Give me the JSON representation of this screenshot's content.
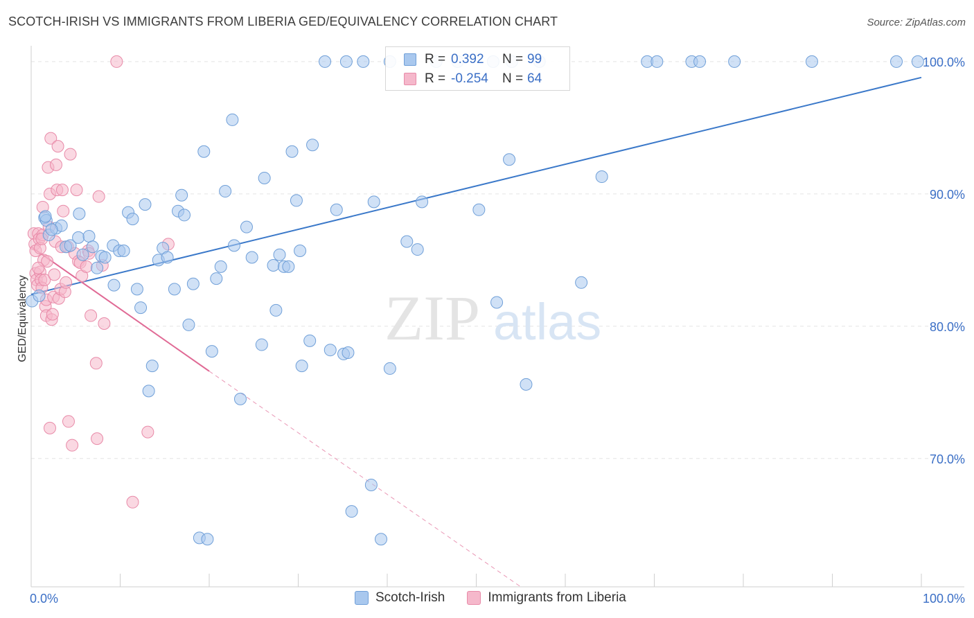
{
  "title": "SCOTCH-IRISH VS IMMIGRANTS FROM LIBERIA GED/EQUIVALENCY CORRELATION CHART",
  "source": "Source: ZipAtlas.com",
  "watermark": {
    "zip": "ZIP",
    "atlas": "atlas"
  },
  "legend": {
    "row1": {
      "r_label": "R =",
      "r_value": "0.392",
      "n_label": "N =",
      "n_value": "99"
    },
    "row2": {
      "r_label": "R =",
      "r_value": "-0.254",
      "n_label": "N =",
      "n_value": "64"
    }
  },
  "bottom_legend": {
    "series1": "Scotch-Irish",
    "series2": "Immigrants from Liberia"
  },
  "colors": {
    "blue_fill": "#a9c8ee",
    "blue_stroke": "#6f9fd8",
    "blue_line": "#3a78c9",
    "pink_fill": "#f5b8cb",
    "pink_stroke": "#e88aa8",
    "pink_line": "#e06a95",
    "axis_text": "#3b6fc6",
    "grid": "#e3e3e3"
  },
  "chart_data": {
    "type": "scatter",
    "title": "SCOTCH-IRISH VS IMMIGRANTS FROM LIBERIA GED/EQUIVALENCY CORRELATION CHART",
    "xlabel": "",
    "ylabel": "GED/Equivalency",
    "xlim": [
      0,
      100
    ],
    "ylim": [
      60.3,
      101.2
    ],
    "x_tick_labels": [
      "0.0%",
      "100.0%"
    ],
    "y_ticks": [
      70,
      80,
      90,
      100
    ],
    "y_tick_labels": [
      "70.0%",
      "80.0%",
      "90.0%",
      "100.0%"
    ],
    "grid": true,
    "series": [
      {
        "name": "Scotch-Irish",
        "r": 0.392,
        "n": 99,
        "trend": {
          "x": [
            0,
            100
          ],
          "y": [
            82.4,
            98.8
          ],
          "dashed_from": null
        },
        "points": [
          [
            0.1,
            81.9
          ],
          [
            1.5,
            88.2
          ],
          [
            1.7,
            88.0
          ],
          [
            2.0,
            86.9
          ],
          [
            2.8,
            87.4
          ],
          [
            3.4,
            87.6
          ],
          [
            3.9,
            86.0
          ],
          [
            4.4,
            86.1
          ],
          [
            5.3,
            86.7
          ],
          [
            5.4,
            88.5
          ],
          [
            5.8,
            85.4
          ],
          [
            6.5,
            86.8
          ],
          [
            6.9,
            86.0
          ],
          [
            7.4,
            84.4
          ],
          [
            7.9,
            85.3
          ],
          [
            8.3,
            85.2
          ],
          [
            9.2,
            86.1
          ],
          [
            9.3,
            83.1
          ],
          [
            9.9,
            85.7
          ],
          [
            10.4,
            85.7
          ],
          [
            10.9,
            88.6
          ],
          [
            11.4,
            88.1
          ],
          [
            11.9,
            82.8
          ],
          [
            12.3,
            81.4
          ],
          [
            12.8,
            89.2
          ],
          [
            13.2,
            75.1
          ],
          [
            13.6,
            77.0
          ],
          [
            14.3,
            85.0
          ],
          [
            14.8,
            85.9
          ],
          [
            15.3,
            85.2
          ],
          [
            16.1,
            82.8
          ],
          [
            16.5,
            88.7
          ],
          [
            16.9,
            89.9
          ],
          [
            17.2,
            88.4
          ],
          [
            17.7,
            80.1
          ],
          [
            18.2,
            83.2
          ],
          [
            18.9,
            64.0
          ],
          [
            19.4,
            93.2
          ],
          [
            19.8,
            63.9
          ],
          [
            20.3,
            78.1
          ],
          [
            20.8,
            83.6
          ],
          [
            21.3,
            84.5
          ],
          [
            21.8,
            90.2
          ],
          [
            22.6,
            95.6
          ],
          [
            22.8,
            86.1
          ],
          [
            23.5,
            74.5
          ],
          [
            24.2,
            87.5
          ],
          [
            24.8,
            85.2
          ],
          [
            25.9,
            78.6
          ],
          [
            26.2,
            91.2
          ],
          [
            27.2,
            84.6
          ],
          [
            27.5,
            81.2
          ],
          [
            27.9,
            85.4
          ],
          [
            28.4,
            84.5
          ],
          [
            28.9,
            84.5
          ],
          [
            29.3,
            93.2
          ],
          [
            29.8,
            89.5
          ],
          [
            30.2,
            85.7
          ],
          [
            30.4,
            77.0
          ],
          [
            31.3,
            78.9
          ],
          [
            31.6,
            93.7
          ],
          [
            33.0,
            100.0
          ],
          [
            35.4,
            100.0
          ],
          [
            33.6,
            78.2
          ],
          [
            34.3,
            88.8
          ],
          [
            35.1,
            77.9
          ],
          [
            35.6,
            78.0
          ],
          [
            36.0,
            66.0
          ],
          [
            37.3,
            100.0
          ],
          [
            38.2,
            68.0
          ],
          [
            38.5,
            89.4
          ],
          [
            39.3,
            63.9
          ],
          [
            40.3,
            76.8
          ],
          [
            40.3,
            100.0
          ],
          [
            42.2,
            86.4
          ],
          [
            43.4,
            85.8
          ],
          [
            43.9,
            89.4
          ],
          [
            45.5,
            100.0
          ],
          [
            47.9,
            100.0
          ],
          [
            50.3,
            88.8
          ],
          [
            51.9,
            100.0
          ],
          [
            52.3,
            81.8
          ],
          [
            53.7,
            92.6
          ],
          [
            54.0,
            100.0
          ],
          [
            55.6,
            75.6
          ],
          [
            57.1,
            100.0
          ],
          [
            61.8,
            83.3
          ],
          [
            64.1,
            91.3
          ],
          [
            69.2,
            100.0
          ],
          [
            70.3,
            100.0
          ],
          [
            74.2,
            100.0
          ],
          [
            75.1,
            100.0
          ],
          [
            79.0,
            100.0
          ],
          [
            87.7,
            100.0
          ],
          [
            97.2,
            100.0
          ],
          [
            99.6,
            100.0
          ],
          [
            0.9,
            82.3
          ],
          [
            1.6,
            88.3
          ],
          [
            2.3,
            87.3
          ]
        ]
      },
      {
        "name": "Immigrants from Liberia",
        "r": -0.254,
        "n": 64,
        "trend": {
          "x": [
            0,
            20.0,
            55.0
          ],
          "y": [
            86.0,
            76.6,
            60.3
          ],
          "dashed_from": 20.0
        },
        "points": [
          [
            0.3,
            87.0
          ],
          [
            0.4,
            86.2
          ],
          [
            0.5,
            85.7
          ],
          [
            0.5,
            84.0
          ],
          [
            0.6,
            83.5
          ],
          [
            0.7,
            83.1
          ],
          [
            0.8,
            87.0
          ],
          [
            0.9,
            86.6
          ],
          [
            1.0,
            85.9
          ],
          [
            1.0,
            84.1
          ],
          [
            1.1,
            83.5
          ],
          [
            1.2,
            82.9
          ],
          [
            1.3,
            89.0
          ],
          [
            1.3,
            86.9
          ],
          [
            1.4,
            85.0
          ],
          [
            1.5,
            83.5
          ],
          [
            1.6,
            81.5
          ],
          [
            1.7,
            80.8
          ],
          [
            1.7,
            82.0
          ],
          [
            1.8,
            84.9
          ],
          [
            1.9,
            92.0
          ],
          [
            2.0,
            87.5
          ],
          [
            2.1,
            90.0
          ],
          [
            2.2,
            94.2
          ],
          [
            2.3,
            80.5
          ],
          [
            2.4,
            80.9
          ],
          [
            2.5,
            82.2
          ],
          [
            2.6,
            83.9
          ],
          [
            2.7,
            86.4
          ],
          [
            2.8,
            92.2
          ],
          [
            2.9,
            90.3
          ],
          [
            3.0,
            93.6
          ],
          [
            3.1,
            82.1
          ],
          [
            3.3,
            82.8
          ],
          [
            3.4,
            86.0
          ],
          [
            3.5,
            90.3
          ],
          [
            3.6,
            88.7
          ],
          [
            3.8,
            82.6
          ],
          [
            3.9,
            83.3
          ],
          [
            4.1,
            86.0
          ],
          [
            4.2,
            72.8
          ],
          [
            4.4,
            93.0
          ],
          [
            4.6,
            71.0
          ],
          [
            4.9,
            85.5
          ],
          [
            5.1,
            90.3
          ],
          [
            5.3,
            84.9
          ],
          [
            5.5,
            84.8
          ],
          [
            5.7,
            83.8
          ],
          [
            6.2,
            84.5
          ],
          [
            6.4,
            85.7
          ],
          [
            6.5,
            85.5
          ],
          [
            6.7,
            80.8
          ],
          [
            7.3,
            77.2
          ],
          [
            7.4,
            71.5
          ],
          [
            7.6,
            89.8
          ],
          [
            8.0,
            84.6
          ],
          [
            8.2,
            80.2
          ],
          [
            9.6,
            100.0
          ],
          [
            11.4,
            66.7
          ],
          [
            13.1,
            72.0
          ],
          [
            15.4,
            86.2
          ],
          [
            2.1,
            72.3
          ],
          [
            1.2,
            86.6
          ],
          [
            0.8,
            84.4
          ]
        ]
      }
    ]
  }
}
